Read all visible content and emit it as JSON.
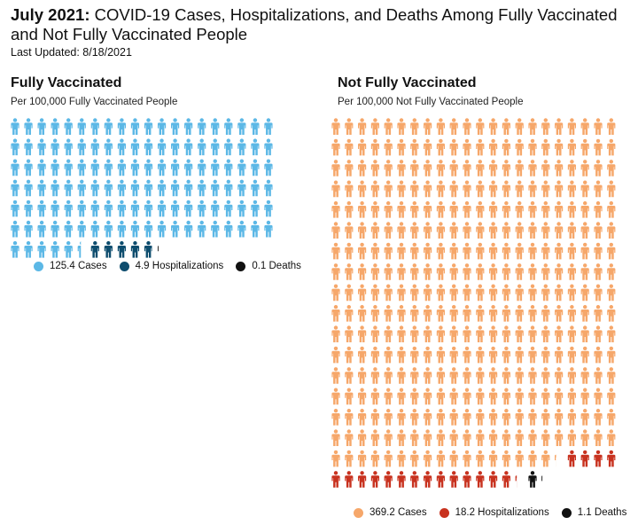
{
  "header": {
    "title_bold": "July 2021:",
    "title_rest": " COVID-19 Cases, Hospitalizations, and Deaths Among Fully Vaccinated and Not Fully Vaccinated People",
    "last_updated": "Last Updated: 8/18/2021"
  },
  "colors": {
    "vax_cases": "#5cb8e6",
    "vax_hosp": "#0e4d6e",
    "unvax_cases": "#f6a76a",
    "unvax_hosp": "#c8321f",
    "deaths": "#111111"
  },
  "icon": "person-icon",
  "chart_data": [
    {
      "type": "pictogram",
      "title": "Fully Vaccinated",
      "subtitle": "Per 100,000 Fully Vaccinated People",
      "legend_position": "bottom",
      "categories": [
        "Cases",
        "Hospitalizations",
        "Deaths"
      ],
      "values": [
        125.4,
        4.9,
        0.1
      ],
      "legend": [
        {
          "label": "125.4 Cases",
          "color_key": "vax_cases"
        },
        {
          "label": "4.9 Hospitalizations",
          "color_key": "vax_hosp"
        },
        {
          "label": "0.1 Deaths",
          "color_key": "deaths"
        }
      ],
      "series": [
        {
          "name": "Cases",
          "value": 125.4,
          "color_key": "vax_cases"
        },
        {
          "name": "Hospitalizations",
          "value": 4.9,
          "color_key": "vax_hosp"
        },
        {
          "name": "Deaths",
          "value": 0.1,
          "color_key": "deaths"
        }
      ]
    },
    {
      "type": "pictogram",
      "title": "Not Fully Vaccinated",
      "subtitle": "Per 100,000 Not Fully Vaccinated People",
      "legend_position": "bottom",
      "categories": [
        "Cases",
        "Hospitalizations",
        "Deaths"
      ],
      "values": [
        369.2,
        18.2,
        1.1
      ],
      "legend": [
        {
          "label": "369.2 Cases",
          "color_key": "unvax_cases"
        },
        {
          "label": "18.2 Hospitalizations",
          "color_key": "unvax_hosp"
        },
        {
          "label": "1.1 Deaths",
          "color_key": "deaths"
        }
      ],
      "series": [
        {
          "name": "Cases",
          "value": 369.2,
          "color_key": "unvax_cases"
        },
        {
          "name": "Hospitalizations",
          "value": 18.2,
          "color_key": "unvax_hosp"
        },
        {
          "name": "Deaths",
          "value": 1.1,
          "color_key": "deaths"
        }
      ]
    }
  ]
}
